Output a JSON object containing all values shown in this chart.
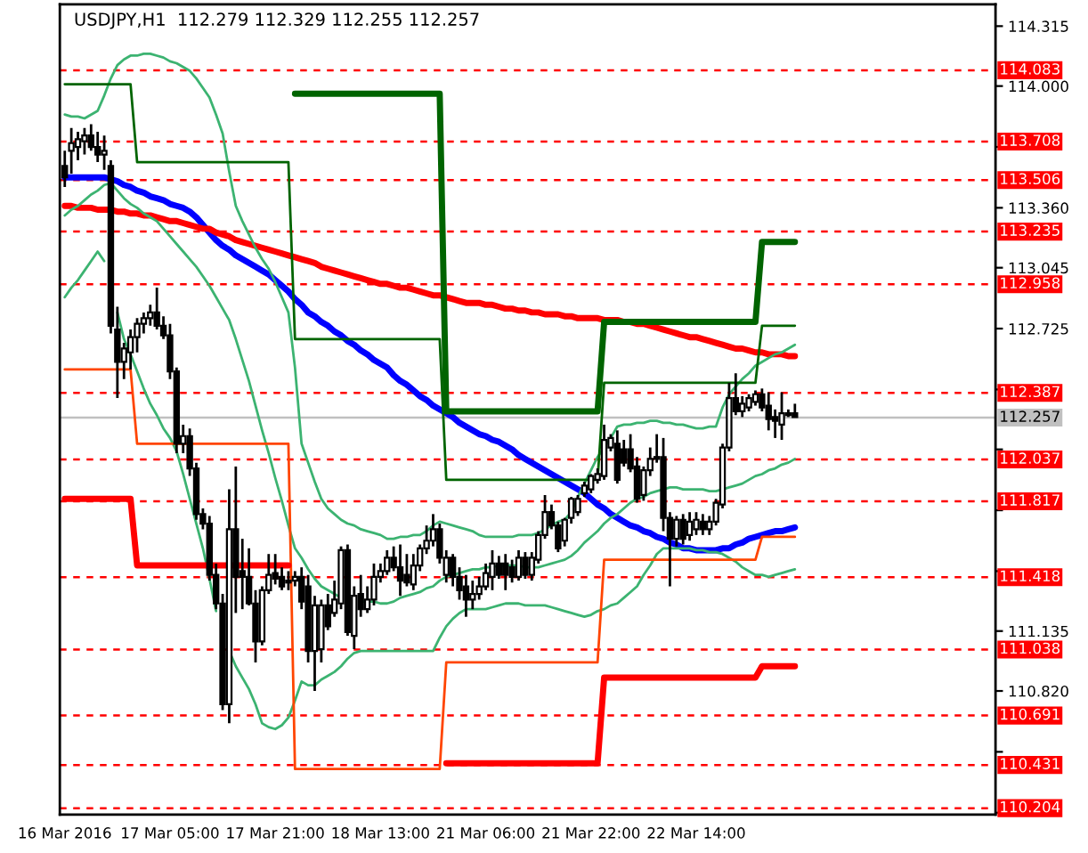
{
  "chart_data": {
    "type": "candlestick",
    "title": "USDJPY,H1  112.279 112.329 112.255 112.257",
    "categories": [
      "16 Mar 2016",
      null,
      null,
      null,
      null,
      null,
      null,
      null,
      null,
      null,
      null,
      null,
      null,
      null,
      null,
      null,
      "17 Mar 05:00",
      null,
      null,
      null,
      null,
      null,
      null,
      null,
      null,
      null,
      null,
      null,
      null,
      null,
      null,
      null,
      "17 Mar 21:00",
      null,
      null,
      null,
      null,
      null,
      null,
      null,
      null,
      null,
      null,
      null,
      null,
      null,
      null,
      null,
      "18 Mar 13:00",
      null,
      null,
      null,
      null,
      null,
      null,
      null,
      null,
      null,
      null,
      null,
      null,
      null,
      null,
      null,
      "21 Mar 06:00",
      null,
      null,
      null,
      null,
      null,
      null,
      null,
      null,
      null,
      null,
      null,
      null,
      null,
      null,
      null,
      "21 Mar 22:00",
      null,
      null,
      null,
      null,
      null,
      null,
      null,
      null,
      null,
      null,
      null,
      null,
      null,
      null,
      null,
      "22 Mar 14:00",
      null,
      null,
      null,
      null,
      null,
      null,
      null,
      null,
      null,
      null,
      null,
      null,
      null,
      null,
      null,
      null,
      null,
      null,
      null,
      null,
      null,
      null,
      null,
      null,
      null,
      null,
      null,
      null,
      null,
      null,
      null,
      null,
      null,
      null,
      null,
      null,
      null,
      null,
      null,
      null,
      null,
      null,
      null,
      null,
      null
    ],
    "ohlc": [
      [
        113.58,
        113.66,
        113.47,
        113.52
      ],
      [
        113.66,
        113.78,
        113.54,
        113.7
      ],
      [
        113.68,
        113.76,
        113.61,
        113.72
      ],
      [
        113.71,
        113.78,
        113.64,
        113.74
      ],
      [
        113.74,
        113.8,
        113.66,
        113.68
      ],
      [
        113.68,
        113.76,
        113.6,
        113.64
      ],
      [
        113.64,
        113.74,
        113.56,
        113.66
      ],
      [
        113.58,
        113.61,
        112.7,
        112.74
      ],
      [
        112.72,
        112.84,
        112.36,
        112.55
      ],
      [
        112.55,
        112.65,
        112.46,
        112.62
      ],
      [
        112.6,
        112.72,
        112.51,
        112.68
      ],
      [
        112.68,
        112.78,
        112.6,
        112.75
      ],
      [
        112.75,
        112.81,
        112.7,
        112.78
      ],
      [
        112.78,
        112.85,
        112.74,
        112.81
      ],
      [
        112.81,
        112.94,
        112.72,
        112.74
      ],
      [
        112.74,
        112.79,
        112.67,
        112.69
      ],
      [
        112.69,
        112.75,
        112.46,
        112.5
      ],
      [
        112.5,
        112.52,
        112.07,
        112.12
      ],
      [
        112.12,
        112.22,
        112.07,
        112.16
      ],
      [
        112.16,
        112.2,
        111.95,
        111.99
      ],
      [
        111.99,
        112.02,
        111.72,
        111.75
      ],
      [
        111.75,
        111.78,
        111.67,
        111.7
      ],
      [
        111.7,
        111.74,
        111.4,
        111.43
      ],
      [
        111.43,
        111.49,
        111.25,
        111.28
      ],
      [
        111.28,
        111.33,
        110.72,
        110.75
      ],
      [
        110.75,
        111.88,
        110.65,
        111.67
      ],
      [
        111.67,
        112.0,
        111.23,
        111.42
      ],
      [
        111.45,
        111.62,
        111.25,
        111.42
      ],
      [
        111.42,
        111.57,
        111.27,
        111.28
      ],
      [
        111.28,
        111.35,
        110.97,
        111.08
      ],
      [
        111.08,
        111.37,
        111.06,
        111.35
      ],
      [
        111.35,
        111.54,
        111.33,
        111.43
      ],
      [
        111.44,
        111.54,
        111.38,
        111.41
      ],
      [
        111.42,
        111.47,
        111.35,
        111.37
      ],
      [
        111.39,
        111.45,
        111.35,
        111.4
      ],
      [
        111.4,
        111.45,
        111.37,
        111.42
      ],
      [
        111.42,
        111.47,
        111.25,
        111.29
      ],
      [
        111.37,
        111.43,
        110.97,
        111.03
      ],
      [
        111.03,
        111.32,
        110.82,
        111.27
      ],
      [
        111.04,
        111.3,
        110.97,
        111.27
      ],
      [
        111.27,
        111.33,
        111.14,
        111.16
      ],
      [
        111.23,
        111.4,
        111.21,
        111.3
      ],
      [
        111.28,
        111.58,
        111.25,
        111.56
      ],
      [
        111.56,
        111.59,
        111.11,
        111.13
      ],
      [
        111.11,
        111.37,
        111.04,
        111.32
      ],
      [
        111.33,
        111.43,
        111.21,
        111.25
      ],
      [
        111.25,
        111.37,
        111.23,
        111.3
      ],
      [
        111.3,
        111.49,
        111.27,
        111.42
      ],
      [
        111.42,
        111.49,
        111.39,
        111.45
      ],
      [
        111.45,
        111.56,
        111.43,
        111.52
      ],
      [
        111.52,
        111.58,
        111.45,
        111.47
      ],
      [
        111.47,
        111.59,
        111.32,
        111.4
      ],
      [
        111.43,
        111.54,
        111.37,
        111.39
      ],
      [
        111.38,
        111.54,
        111.35,
        111.48
      ],
      [
        111.48,
        111.59,
        111.45,
        111.57
      ],
      [
        111.57,
        111.69,
        111.54,
        111.61
      ],
      [
        111.61,
        111.75,
        111.58,
        111.67
      ],
      [
        111.67,
        111.7,
        111.49,
        111.52
      ],
      [
        111.43,
        111.56,
        111.39,
        111.52
      ],
      [
        111.52,
        111.54,
        111.37,
        111.42
      ],
      [
        111.42,
        111.47,
        111.3,
        111.35
      ],
      [
        111.37,
        111.43,
        111.21,
        111.3
      ],
      [
        111.3,
        111.4,
        111.25,
        111.33
      ],
      [
        111.33,
        111.42,
        111.3,
        111.37
      ],
      [
        111.37,
        111.49,
        111.35,
        111.44
      ],
      [
        111.42,
        111.56,
        111.35,
        111.49
      ],
      [
        111.49,
        111.53,
        111.41,
        111.43
      ],
      [
        111.49,
        111.54,
        111.35,
        111.43
      ],
      [
        111.47,
        111.51,
        111.39,
        111.42
      ],
      [
        111.42,
        111.56,
        111.4,
        111.52
      ],
      [
        111.52,
        111.55,
        111.41,
        111.43
      ],
      [
        111.43,
        111.55,
        111.4,
        111.52
      ],
      [
        111.51,
        111.66,
        111.49,
        111.64
      ],
      [
        111.64,
        111.85,
        111.62,
        111.76
      ],
      [
        111.76,
        111.8,
        111.67,
        111.69
      ],
      [
        111.69,
        111.71,
        111.55,
        111.57
      ],
      [
        111.61,
        111.73,
        111.58,
        111.72
      ],
      [
        111.73,
        111.84,
        111.7,
        111.83
      ],
      [
        111.76,
        111.85,
        111.74,
        111.83
      ],
      [
        111.86,
        111.92,
        111.84,
        111.9
      ],
      [
        111.88,
        111.96,
        111.86,
        111.95
      ],
      [
        111.93,
        111.99,
        111.91,
        111.96
      ],
      [
        111.95,
        112.22,
        111.93,
        112.14
      ],
      [
        112.1,
        112.17,
        112.08,
        112.15
      ],
      [
        112.12,
        112.19,
        111.91,
        111.93
      ],
      [
        112.09,
        112.14,
        112.0,
        112.02
      ],
      [
        112.09,
        112.17,
        111.97,
        111.99
      ],
      [
        112.0,
        112.05,
        111.81,
        111.83
      ],
      [
        111.85,
        112.0,
        111.82,
        111.98
      ],
      [
        111.98,
        112.1,
        111.95,
        112.04
      ],
      [
        112.04,
        112.17,
        112.02,
        112.05
      ],
      [
        112.05,
        112.15,
        111.66,
        111.73
      ],
      [
        111.73,
        111.76,
        111.37,
        111.62
      ],
      [
        111.62,
        111.74,
        111.58,
        111.72
      ],
      [
        111.72,
        111.75,
        111.59,
        111.62
      ],
      [
        111.64,
        111.76,
        111.61,
        111.71
      ],
      [
        111.67,
        111.76,
        111.64,
        111.72
      ],
      [
        111.71,
        111.75,
        111.64,
        111.67
      ],
      [
        111.67,
        111.74,
        111.64,
        111.71
      ],
      [
        111.71,
        111.83,
        111.69,
        111.81
      ],
      [
        111.8,
        112.12,
        111.78,
        112.1
      ],
      [
        112.1,
        112.44,
        112.08,
        112.36
      ],
      [
        112.36,
        112.49,
        112.27,
        112.29
      ],
      [
        112.29,
        112.37,
        112.26,
        112.33
      ],
      [
        112.31,
        112.38,
        112.29,
        112.36
      ],
      [
        112.34,
        112.4,
        112.32,
        112.38
      ],
      [
        112.38,
        112.41,
        112.29,
        112.31
      ],
      [
        112.32,
        112.39,
        112.19,
        112.25
      ],
      [
        112.26,
        112.3,
        112.15,
        112.24
      ],
      [
        112.22,
        112.39,
        112.14,
        112.28
      ],
      [
        112.28,
        112.3,
        112.26,
        112.27
      ],
      [
        112.28,
        112.33,
        112.26,
        112.26
      ],
      null,
      null,
      null,
      null,
      null,
      null,
      null,
      null,
      null,
      null,
      null,
      null,
      null,
      null,
      null,
      null,
      null,
      null,
      null,
      null,
      null,
      null,
      null,
      null,
      null,
      null,
      null,
      null,
      null,
      null
    ],
    "series": [
      {
        "type": "line",
        "color": "#0000ff",
        "values": [
          113.52,
          113.52,
          113.52,
          113.52,
          113.52,
          113.52,
          113.52,
          113.51,
          113.5,
          113.48,
          113.47,
          113.45,
          113.44,
          113.42,
          113.41,
          113.4,
          113.38,
          113.37,
          113.36,
          113.34,
          113.31,
          113.27,
          113.23,
          113.19,
          113.16,
          113.14,
          113.11,
          113.09,
          113.07,
          113.05,
          113.03,
          113.01,
          112.98,
          112.95,
          112.92,
          112.88,
          112.85,
          112.81,
          112.79,
          112.76,
          112.74,
          112.71,
          112.69,
          112.66,
          112.64,
          112.61,
          112.59,
          112.56,
          112.54,
          112.52,
          112.48,
          112.45,
          112.43,
          112.4,
          112.37,
          112.35,
          112.32,
          112.3,
          112.28,
          112.26,
          112.23,
          112.21,
          112.19,
          112.17,
          112.16,
          112.14,
          112.13,
          112.11,
          112.09,
          112.06,
          112.04,
          112.02,
          112.0,
          111.98,
          111.96,
          111.94,
          111.92,
          111.9,
          111.88,
          111.86,
          111.83,
          111.8,
          111.78,
          111.75,
          111.73,
          111.71,
          111.69,
          111.68,
          111.66,
          111.65,
          111.63,
          111.62,
          111.6,
          111.59,
          111.57,
          111.57,
          111.56,
          111.56,
          111.56,
          111.56,
          111.57,
          111.57,
          111.59,
          111.6,
          111.62,
          111.63,
          111.64,
          111.65,
          111.66,
          111.66,
          111.67,
          111.68,
          null,
          null,
          null,
          null,
          null,
          null,
          null,
          null,
          null,
          null,
          null,
          null,
          null,
          null,
          null,
          null,
          null,
          null,
          null,
          null,
          null,
          null,
          null,
          null,
          null,
          null,
          null,
          null,
          null,
          null
        ]
      },
      {
        "type": "line",
        "color": "#ff0000",
        "values": [
          113.37,
          113.37,
          113.36,
          113.36,
          113.36,
          113.35,
          113.35,
          113.35,
          113.34,
          113.34,
          113.33,
          113.33,
          113.32,
          113.32,
          113.31,
          113.3,
          113.29,
          113.29,
          113.28,
          113.27,
          113.26,
          113.25,
          113.25,
          113.23,
          113.22,
          113.21,
          113.19,
          113.18,
          113.17,
          113.16,
          113.15,
          113.14,
          113.13,
          113.12,
          113.11,
          113.1,
          113.09,
          113.08,
          113.07,
          113.05,
          113.04,
          113.03,
          113.02,
          113.01,
          113.0,
          112.99,
          112.98,
          112.97,
          112.96,
          112.96,
          112.95,
          112.94,
          112.94,
          112.93,
          112.92,
          112.91,
          112.9,
          112.9,
          112.89,
          112.88,
          112.87,
          112.86,
          112.86,
          112.86,
          112.85,
          112.85,
          112.84,
          112.83,
          112.83,
          112.82,
          112.82,
          112.81,
          112.81,
          112.8,
          112.8,
          112.8,
          112.79,
          112.79,
          112.78,
          112.78,
          112.78,
          112.78,
          112.77,
          112.77,
          112.77,
          112.76,
          112.76,
          112.75,
          112.75,
          112.74,
          112.73,
          112.72,
          112.71,
          112.7,
          112.69,
          112.68,
          112.68,
          112.67,
          112.66,
          112.65,
          112.64,
          112.63,
          112.62,
          112.62,
          112.61,
          112.6,
          112.6,
          112.59,
          112.59,
          112.59,
          112.58,
          112.58,
          null,
          null,
          null,
          null,
          null,
          null,
          null,
          null,
          null,
          null,
          null,
          null,
          null,
          null,
          null,
          null,
          null,
          null,
          null,
          null,
          null,
          null,
          null,
          null,
          null,
          null,
          null,
          null,
          null,
          null
        ]
      },
      {
        "type": "line",
        "color": "#3cb371",
        "values": [
          113.85,
          113.84,
          113.84,
          113.83,
          113.85,
          113.87,
          113.95,
          114.04,
          114.11,
          114.14,
          114.16,
          114.16,
          114.17,
          114.17,
          114.16,
          114.15,
          114.13,
          114.12,
          114.1,
          114.08,
          114.04,
          113.99,
          113.94,
          113.85,
          113.75,
          113.55,
          113.37,
          113.29,
          113.22,
          113.15,
          113.09,
          113.04,
          112.97,
          112.89,
          112.81,
          112.52,
          112.12,
          112.02,
          111.92,
          111.83,
          111.78,
          111.75,
          111.72,
          111.7,
          111.69,
          111.67,
          111.66,
          111.65,
          111.64,
          111.62,
          111.62,
          111.63,
          111.63,
          111.64,
          111.64,
          111.66,
          111.69,
          111.71,
          111.7,
          111.69,
          111.68,
          111.67,
          111.66,
          111.64,
          111.63,
          111.63,
          111.63,
          111.63,
          111.63,
          111.64,
          111.64,
          111.64,
          111.65,
          111.67,
          111.69,
          111.71,
          111.72,
          111.76,
          111.84,
          111.91,
          111.98,
          112.05,
          112.1,
          112.15,
          112.21,
          112.22,
          112.22,
          112.23,
          112.23,
          112.24,
          112.24,
          112.23,
          112.23,
          112.22,
          112.22,
          112.21,
          112.2,
          112.2,
          112.21,
          112.21,
          112.31,
          112.38,
          112.42,
          112.46,
          112.49,
          112.53,
          112.55,
          112.57,
          112.59,
          112.6,
          112.62,
          112.64,
          null,
          null,
          null,
          null,
          null,
          null,
          null,
          null,
          null,
          null,
          null,
          null,
          null,
          null,
          null,
          null,
          null,
          null,
          null,
          null,
          null,
          null,
          null,
          null,
          null,
          null,
          null,
          null,
          null,
          null
        ]
      },
      {
        "type": "line",
        "color": "#3cb371",
        "values": [
          113.32,
          113.35,
          113.37,
          113.4,
          113.43,
          113.45,
          113.48,
          113.49,
          113.45,
          113.41,
          113.38,
          113.36,
          113.33,
          113.31,
          113.29,
          113.25,
          113.21,
          113.17,
          113.13,
          113.09,
          113.05,
          113.0,
          112.95,
          112.89,
          112.83,
          112.77,
          112.67,
          112.56,
          112.45,
          112.32,
          112.19,
          112.07,
          111.94,
          111.82,
          111.69,
          111.57,
          111.52,
          111.46,
          111.41,
          111.37,
          111.35,
          111.33,
          111.31,
          null,
          null,
          111.29,
          111.29,
          111.29,
          111.28,
          111.28,
          111.29,
          111.31,
          111.32,
          111.33,
          111.34,
          111.36,
          111.37,
          111.4,
          111.42,
          111.43,
          111.44,
          111.45,
          111.46,
          111.46,
          111.47,
          111.47,
          111.48,
          111.48,
          111.48,
          111.48,
          111.47,
          111.47,
          111.47,
          111.48,
          111.49,
          111.5,
          111.51,
          111.53,
          111.56,
          111.6,
          111.63,
          111.66,
          111.7,
          111.73,
          111.75,
          111.78,
          111.81,
          111.83,
          111.84,
          111.86,
          111.87,
          111.88,
          111.89,
          111.89,
          111.88,
          111.88,
          111.88,
          111.88,
          111.87,
          111.87,
          111.88,
          111.89,
          111.9,
          111.91,
          111.93,
          111.95,
          111.96,
          111.98,
          111.99,
          112.01,
          112.02,
          112.04,
          null,
          null,
          null,
          null,
          null,
          null,
          null,
          null,
          null,
          null,
          null,
          null,
          null,
          null,
          null,
          null,
          null,
          null,
          null,
          null,
          null,
          null,
          null,
          null,
          null,
          null,
          null,
          null,
          null,
          null
        ]
      },
      {
        "type": "line",
        "color": "#3cb371",
        "values": [
          112.89,
          112.94,
          112.98,
          113.03,
          113.08,
          113.13,
          113.08,
          null,
          112.81,
          112.67,
          112.59,
          112.5,
          112.41,
          112.33,
          112.27,
          112.2,
          112.15,
          112.08,
          111.96,
          111.83,
          111.7,
          111.57,
          111.41,
          111.24,
          null,
          111.03,
          110.95,
          110.89,
          110.83,
          110.75,
          110.65,
          110.63,
          110.62,
          110.64,
          110.68,
          110.77,
          110.87,
          110.85,
          110.85,
          110.88,
          110.9,
          110.92,
          110.95,
          110.99,
          111.02,
          111.03,
          111.03,
          111.03,
          111.03,
          111.03,
          111.03,
          111.03,
          111.03,
          111.03,
          111.03,
          111.03,
          111.03,
          111.1,
          111.16,
          111.2,
          111.23,
          111.25,
          111.25,
          111.25,
          111.25,
          111.26,
          111.27,
          111.28,
          111.28,
          111.28,
          111.27,
          111.27,
          111.27,
          111.27,
          111.26,
          111.25,
          111.24,
          111.23,
          111.22,
          111.21,
          111.22,
          111.24,
          111.25,
          111.27,
          111.28,
          111.31,
          111.34,
          111.37,
          111.43,
          111.48,
          111.54,
          111.57,
          111.57,
          111.57,
          111.57,
          111.57,
          111.56,
          111.56,
          111.55,
          111.55,
          111.54,
          111.52,
          111.5,
          111.47,
          111.45,
          111.43,
          111.43,
          111.42,
          111.43,
          111.44,
          111.45,
          111.46,
          null,
          null,
          null,
          null,
          null,
          null,
          null,
          null,
          null,
          null,
          null,
          null,
          null,
          null,
          null,
          null,
          null,
          null,
          null,
          null,
          null,
          null,
          null,
          null,
          null,
          null,
          null,
          null,
          null,
          null
        ]
      },
      {
        "type": "line",
        "color": "#006400",
        "values": [
          null,
          null,
          null,
          null,
          null,
          null,
          null,
          null,
          null,
          null,
          null,
          null,
          null,
          null,
          null,
          null,
          null,
          null,
          null,
          null,
          null,
          null,
          null,
          null,
          null,
          null,
          null,
          null,
          null,
          null,
          null,
          null,
          null,
          null,
          null,
          113.96,
          113.96,
          113.96,
          113.96,
          113.96,
          113.96,
          113.96,
          113.96,
          113.96,
          113.96,
          113.96,
          113.96,
          113.96,
          113.96,
          113.96,
          113.96,
          113.96,
          113.96,
          113.96,
          113.96,
          113.96,
          113.96,
          113.96,
          112.29,
          112.29,
          112.29,
          112.29,
          112.29,
          112.29,
          112.29,
          112.29,
          112.29,
          112.29,
          112.29,
          112.29,
          112.29,
          112.29,
          112.29,
          112.29,
          112.29,
          112.29,
          112.29,
          112.29,
          112.29,
          112.29,
          112.29,
          112.29,
          112.76,
          112.76,
          112.76,
          112.76,
          112.76,
          112.76,
          112.76,
          112.76,
          112.76,
          112.76,
          112.76,
          112.76,
          112.76,
          112.76,
          112.76,
          112.76,
          112.76,
          112.76,
          112.76,
          112.76,
          112.76,
          112.76,
          112.76,
          112.76,
          113.18,
          113.18,
          113.18,
          113.18,
          113.18,
          113.18,
          null,
          null,
          null,
          null,
          null,
          null,
          null,
          null,
          null,
          null,
          null,
          null,
          null,
          null,
          null,
          null,
          null,
          null,
          null,
          null,
          null,
          null,
          null,
          null,
          null,
          null,
          null,
          null,
          null,
          null
        ]
      },
      {
        "type": "line",
        "color": "#006400",
        "values": [
          114.01,
          114.01,
          114.01,
          114.01,
          114.01,
          114.01,
          114.01,
          114.01,
          114.01,
          114.01,
          114.01,
          113.6,
          113.6,
          113.6,
          113.6,
          113.6,
          113.6,
          113.6,
          113.6,
          113.6,
          113.6,
          113.6,
          113.6,
          113.6,
          113.6,
          113.6,
          113.6,
          113.6,
          113.6,
          113.6,
          113.6,
          113.6,
          113.6,
          113.6,
          113.6,
          112.67,
          112.67,
          112.67,
          112.67,
          112.67,
          112.67,
          112.67,
          112.67,
          112.67,
          112.67,
          112.67,
          112.67,
          112.67,
          112.67,
          112.67,
          112.67,
          112.67,
          112.67,
          112.67,
          112.67,
          112.67,
          112.67,
          112.67,
          111.93,
          111.93,
          111.93,
          111.93,
          111.93,
          111.93,
          111.93,
          111.93,
          111.93,
          111.93,
          111.93,
          111.93,
          111.93,
          111.93,
          111.93,
          111.93,
          111.93,
          111.93,
          111.93,
          111.93,
          111.93,
          111.93,
          111.93,
          111.93,
          112.44,
          112.44,
          112.44,
          112.44,
          112.44,
          112.44,
          112.44,
          112.44,
          112.44,
          112.44,
          112.44,
          112.44,
          112.44,
          112.44,
          112.44,
          112.44,
          112.44,
          112.44,
          112.44,
          112.44,
          112.44,
          112.44,
          112.44,
          112.44,
          112.74,
          112.74,
          112.74,
          112.74,
          112.74,
          112.74,
          null,
          null,
          null,
          null,
          null,
          null,
          null,
          null,
          null,
          null,
          null,
          null,
          null,
          null,
          null,
          null,
          null,
          null,
          null,
          null,
          null,
          null,
          null,
          null,
          null,
          null,
          null,
          null,
          null,
          null
        ]
      },
      {
        "type": "line",
        "color": "#ff4500",
        "values": [
          112.51,
          112.51,
          112.51,
          112.51,
          112.51,
          112.51,
          112.51,
          112.51,
          112.51,
          112.51,
          112.51,
          112.12,
          112.12,
          112.12,
          112.12,
          112.12,
          112.12,
          112.12,
          112.12,
          112.12,
          112.12,
          112.12,
          112.12,
          112.12,
          112.12,
          112.12,
          112.12,
          112.12,
          112.12,
          112.12,
          112.12,
          112.12,
          112.12,
          112.12,
          112.12,
          110.41,
          110.41,
          110.41,
          110.41,
          110.41,
          110.41,
          110.41,
          110.41,
          110.41,
          110.41,
          110.41,
          110.41,
          110.41,
          110.41,
          110.41,
          110.41,
          110.41,
          110.41,
          110.41,
          110.41,
          110.41,
          110.41,
          110.41,
          110.97,
          110.97,
          110.97,
          110.97,
          110.97,
          110.97,
          110.97,
          110.97,
          110.97,
          110.97,
          110.97,
          110.97,
          110.97,
          110.97,
          110.97,
          110.97,
          110.97,
          110.97,
          110.97,
          110.97,
          110.97,
          110.97,
          110.97,
          110.97,
          111.51,
          111.51,
          111.51,
          111.51,
          111.51,
          111.51,
          111.51,
          111.51,
          111.51,
          111.51,
          111.51,
          111.51,
          111.51,
          111.51,
          111.51,
          111.51,
          111.51,
          111.51,
          111.51,
          111.51,
          111.51,
          111.51,
          111.51,
          111.51,
          111.63,
          111.63,
          111.63,
          111.63,
          111.63,
          111.63,
          null,
          null,
          null,
          null,
          null,
          null,
          null,
          null,
          null,
          null,
          null,
          null,
          null,
          null,
          null,
          null,
          null,
          null,
          null,
          null,
          null,
          null,
          null,
          null,
          null,
          null,
          null,
          null,
          null,
          null
        ]
      },
      {
        "type": "line",
        "color": "#ff0000",
        "values": [
          111.83,
          111.83,
          111.83,
          111.83,
          111.83,
          111.83,
          111.83,
          111.83,
          111.83,
          111.83,
          111.83,
          111.48,
          111.48,
          111.48,
          111.48,
          111.48,
          111.48,
          111.48,
          111.48,
          111.48,
          111.48,
          111.48,
          111.48,
          111.48,
          111.48,
          111.48,
          111.48,
          111.48,
          111.48,
          111.48,
          111.48,
          111.48,
          111.48,
          111.48,
          111.48,
          null,
          null,
          null,
          null,
          null,
          null,
          null,
          null,
          null,
          null,
          null,
          null,
          null,
          null,
          null,
          null,
          null,
          null,
          null,
          null,
          null,
          null,
          null,
          110.44,
          110.44,
          110.44,
          110.44,
          110.44,
          110.44,
          110.44,
          110.44,
          110.44,
          110.44,
          110.44,
          110.44,
          110.44,
          110.44,
          110.44,
          110.44,
          110.44,
          110.44,
          110.44,
          110.44,
          110.44,
          110.44,
          110.44,
          110.44,
          110.89,
          110.89,
          110.89,
          110.89,
          110.89,
          110.89,
          110.89,
          110.89,
          110.89,
          110.89,
          110.89,
          110.89,
          110.89,
          110.89,
          110.89,
          110.89,
          110.89,
          110.89,
          110.89,
          110.89,
          110.89,
          110.89,
          110.89,
          110.89,
          110.95,
          110.95,
          110.95,
          110.95,
          110.95,
          110.95,
          null,
          null,
          null,
          null,
          null,
          null,
          null,
          null,
          null,
          null,
          null,
          null,
          null,
          null,
          null,
          null,
          null,
          null,
          null,
          null,
          null,
          null,
          null,
          null,
          null,
          null,
          null,
          null,
          null,
          null
        ]
      }
    ],
    "ylim": [
      110.17,
      114.43
    ],
    "yticks": [
      114.315,
      {
        "value": 114.0,
        "label": "114.000"
      },
      {
        "value": 113.68,
        "label": null
      },
      {
        "value": 113.36,
        "label": "113.360"
      },
      113.045,
      112.725,
      {
        "value": 112.405,
        "label": null
      },
      {
        "value": 112.09,
        "label": null
      },
      {
        "value": 111.77,
        "label": null
      },
      {
        "value": 111.45,
        "label": null
      },
      111.135,
      {
        "value": 110.82,
        "label": "110.820"
      },
      {
        "value": 110.5,
        "label": null
      },
      {
        "value": 110.18,
        "label": null
      }
    ],
    "ref_lines": [
      {
        "axis": "y",
        "value": 114.083,
        "label": "114.083",
        "color": "#ff0000",
        "line_style": "dashed"
      },
      {
        "axis": "y",
        "value": 113.708,
        "label": "113.708",
        "color": "#ff0000",
        "line_style": "dashed"
      },
      {
        "axis": "y",
        "value": 113.506,
        "label": "113.506",
        "color": "#ff0000",
        "line_style": "dashed"
      },
      {
        "axis": "y",
        "value": 113.235,
        "label": "113.235",
        "color": "#ff0000",
        "line_style": "dashed"
      },
      {
        "axis": "y",
        "value": 112.958,
        "label": "112.958",
        "color": "#ff0000",
        "line_style": "dashed"
      },
      {
        "axis": "y",
        "value": 112.387,
        "label": "112.387",
        "color": "#ff0000",
        "line_style": "dashed"
      },
      {
        "axis": "y",
        "value": 112.257,
        "label": "112.257",
        "color": "#c0c0c0",
        "line_style": "solid"
      },
      {
        "axis": "y",
        "value": 112.037,
        "label": "112.037",
        "color": "#ff0000",
        "line_style": "dashed"
      },
      {
        "axis": "y",
        "value": 111.817,
        "label": "111.817",
        "color": "#ff0000",
        "line_style": "dashed"
      },
      {
        "axis": "y",
        "value": 111.418,
        "label": "111.418",
        "color": "#ff0000",
        "line_style": "dashed"
      },
      {
        "axis": "y",
        "value": 111.038,
        "label": "111.038",
        "color": "#ff0000",
        "line_style": "dashed"
      },
      {
        "axis": "y",
        "value": 110.691,
        "label": "110.691",
        "color": "#ff0000",
        "line_style": "dashed"
      },
      {
        "axis": "y",
        "value": 110.431,
        "label": "110.431",
        "color": "#ff0000",
        "line_style": "dashed"
      },
      {
        "axis": "y",
        "value": 110.204,
        "label": "110.204",
        "color": "#ff0000",
        "line_style": "dashed"
      }
    ]
  }
}
